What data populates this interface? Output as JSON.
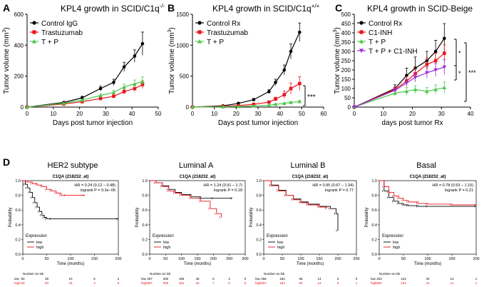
{
  "panels_top": [
    {
      "letter": "A",
      "title": "KPL4 growth in SCID/C1q",
      "title_sup": "-/-",
      "xlabel": "Days post tumor injection",
      "ylabel": "Tumor volume (mm",
      "ylabel_sup": "3",
      "ylabel_end": ")",
      "xlim": [
        0,
        50
      ],
      "ylim": [
        0,
        600
      ],
      "xticks": [
        0,
        10,
        20,
        30,
        40,
        50
      ],
      "yticks": [
        0,
        200,
        400,
        600
      ],
      "legend_placement": "top-left",
      "chart_data": {
        "type": "line",
        "series": [
          {
            "name": "Control IgG",
            "color": "#000000",
            "marker": "circle",
            "x": [
              0,
              14,
              21,
              28,
              33,
              37,
              41,
              44
            ],
            "y": [
              0,
              30,
              60,
              120,
              160,
              260,
              330,
              410
            ],
            "err": [
              0,
              5,
              10,
              15,
              20,
              30,
              40,
              75
            ]
          },
          {
            "name": "Trastuzumab",
            "color": "#e8141c",
            "marker": "square",
            "x": [
              0,
              14,
              21,
              28,
              33,
              37,
              41,
              44
            ],
            "y": [
              0,
              20,
              35,
              55,
              70,
              100,
              120,
              145
            ],
            "err": [
              0,
              3,
              5,
              8,
              10,
              15,
              20,
              25
            ]
          },
          {
            "name": "T + P",
            "color": "#4ec94e",
            "marker": "triangle",
            "x": [
              0,
              14,
              21,
              28,
              33,
              37,
              41,
              44
            ],
            "y": [
              0,
              25,
              45,
              75,
              95,
              130,
              150,
              165
            ],
            "err": [
              0,
              3,
              6,
              10,
              12,
              18,
              25,
              30
            ]
          }
        ]
      }
    },
    {
      "letter": "B",
      "title": "KPL4 growth in SCID/C1q",
      "title_sup": "+/+",
      "xlabel": "Days post tumor injection",
      "ylabel": "Tumor volume (mm",
      "ylabel_sup": "3",
      "ylabel_end": ")",
      "xlim": [
        0,
        60
      ],
      "ylim": [
        0,
        1500
      ],
      "xticks": [
        0,
        10,
        20,
        30,
        40,
        50,
        60
      ],
      "yticks": [
        0,
        500,
        1000,
        1500
      ],
      "legend_placement": "top-left",
      "significance": "***",
      "chart_data": {
        "type": "line",
        "series": [
          {
            "name": "Control Rx",
            "color": "#000000",
            "marker": "circle",
            "x": [
              0,
              14,
              21,
              28,
              35,
              38,
              42,
              45,
              49
            ],
            "y": [
              0,
              20,
              60,
              120,
              250,
              400,
              600,
              900,
              1210
            ],
            "err": [
              0,
              5,
              10,
              20,
              30,
              50,
              80,
              120,
              150
            ]
          },
          {
            "name": "Trastuzumab",
            "color": "#e8141c",
            "marker": "square",
            "x": [
              0,
              14,
              21,
              28,
              35,
              38,
              42,
              45,
              49
            ],
            "y": [
              0,
              10,
              25,
              45,
              80,
              130,
              200,
              300,
              380
            ],
            "err": [
              0,
              3,
              5,
              10,
              15,
              30,
              60,
              90,
              110
            ]
          },
          {
            "name": "T + P",
            "color": "#4ec94e",
            "marker": "triangle",
            "x": [
              0,
              14,
              21,
              28,
              35,
              38,
              42,
              45,
              49
            ],
            "y": [
              0,
              5,
              10,
              18,
              30,
              45,
              60,
              75,
              90
            ],
            "err": [
              0,
              2,
              3,
              5,
              8,
              10,
              12,
              15,
              18
            ]
          }
        ]
      }
    },
    {
      "letter": "C",
      "title": "KPL4 growth in SCID-Beige",
      "title_sup": "",
      "xlabel": "days post tumor Rx",
      "ylabel": "Tumor volume (mm",
      "ylabel_sup": "3",
      "ylabel_end": ")",
      "xlim": [
        0,
        40
      ],
      "ylim": [
        0,
        500
      ],
      "xticks": [
        0,
        10,
        20,
        30,
        40
      ],
      "yticks": [
        0,
        50,
        100,
        150,
        200,
        250,
        300,
        350,
        400,
        450,
        500
      ],
      "legend_placement": "top-left",
      "significance": [
        "*",
        "*",
        "***"
      ],
      "chart_data": {
        "type": "line",
        "series": [
          {
            "name": "Control Rx",
            "color": "#000000",
            "marker": "circle",
            "x": [
              0,
              14,
              18,
              21,
              25,
              28,
              31
            ],
            "y": [
              0,
              100,
              170,
              210,
              250,
              300,
              370
            ],
            "err": [
              0,
              20,
              40,
              60,
              50,
              60,
              80
            ]
          },
          {
            "name": "C1-INH",
            "color": "#e8141c",
            "marker": "square",
            "x": [
              0,
              14,
              18,
              21,
              25,
              28,
              31
            ],
            "y": [
              0,
              95,
              140,
              180,
              230,
              250,
              290
            ],
            "err": [
              0,
              15,
              25,
              30,
              35,
              40,
              45
            ]
          },
          {
            "name": "T + P",
            "color": "#4ec94e",
            "marker": "triangle",
            "x": [
              0,
              14,
              18,
              21,
              25,
              28,
              31
            ],
            "y": [
              0,
              75,
              85,
              95,
              85,
              95,
              105
            ],
            "err": [
              0,
              15,
              20,
              20,
              20,
              25,
              30
            ]
          },
          {
            "name": "T + P + C1-INH",
            "color": "#9b30d9",
            "marker": "triangle-down",
            "x": [
              0,
              14,
              18,
              21,
              25,
              28,
              31
            ],
            "y": [
              0,
              90,
              130,
              160,
              185,
              200,
              215
            ],
            "err": [
              0,
              15,
              20,
              25,
              30,
              35,
              40
            ]
          }
        ]
      }
    }
  ],
  "panel_d": {
    "letter": "D",
    "subplots": [
      {
        "header": "HER2 subtype",
        "gene": "C1QA (218232_at)",
        "stats": [
          "HR = 0.24 (0.12 – 0.48)",
          "logrank P = 9.3e−06"
        ],
        "xlabel": "Time (months)",
        "ylabel": "Probability",
        "xticks": [
          0,
          50,
          100,
          150,
          200
        ],
        "xlim": [
          0,
          200
        ],
        "yticks": [
          0.0,
          0.2,
          0.4,
          0.6,
          0.8,
          1.0
        ],
        "legend": {
          "title": "Expression",
          "low": "low",
          "high": "high"
        },
        "risk": {
          "label": "Number at risk",
          "low": [
            "low",
            "83",
            "38",
            "10",
            "6",
            "2"
          ],
          "high": [
            "high",
            "83",
            "53",
            "18",
            "4",
            "0"
          ]
        },
        "chart_data": {
          "type": "line",
          "series": [
            {
              "name": "low",
              "color": "#000000",
              "x": [
                0,
                5,
                10,
                15,
                20,
                25,
                30,
                35,
                40,
                45,
                50,
                60,
                200
              ],
              "y": [
                1.0,
                0.95,
                0.9,
                0.84,
                0.77,
                0.7,
                0.64,
                0.58,
                0.53,
                0.5,
                0.48,
                0.48,
                0.48
              ]
            },
            {
              "name": "high",
              "color": "#e8141c",
              "x": [
                0,
                10,
                20,
                30,
                40,
                50,
                60,
                70,
                80,
                90,
                130
              ],
              "y": [
                1.0,
                0.98,
                0.96,
                0.94,
                0.92,
                0.88,
                0.86,
                0.83,
                0.8,
                0.8,
                0.8
              ]
            }
          ]
        }
      },
      {
        "header": "Luminal A",
        "gene": "C1QA (218232_at)",
        "stats": [
          "HR = 1.24 (0.91 – 1.7)",
          "logrank P = 0.18"
        ],
        "xlabel": "Time (months)",
        "ylabel": "Probability",
        "xticks": [
          0,
          50,
          100,
          150,
          200,
          250,
          300
        ],
        "xlim": [
          0,
          300
        ],
        "yticks": [
          0.0,
          0.2,
          0.4,
          0.6,
          0.8,
          1.0
        ],
        "legend": {
          "title": "Expression",
          "low": "low",
          "high": "high"
        },
        "risk": {
          "label": "Number at risk",
          "low": [
            "low",
            "397",
            "330",
            "165",
            "45",
            "6",
            "2",
            "0"
          ],
          "high": [
            "high",
            "397",
            "305",
            "151",
            "44",
            "7",
            "0",
            "0"
          ]
        },
        "chart_data": {
          "type": "line",
          "series": [
            {
              "name": "low",
              "color": "#000000",
              "x": [
                0,
                20,
                40,
                60,
                80,
                100,
                130,
                160,
                200,
                260
              ],
              "y": [
                1.0,
                0.97,
                0.93,
                0.88,
                0.84,
                0.81,
                0.78,
                0.76,
                0.76,
                0.76
              ]
            },
            {
              "name": "high",
              "color": "#e8141c",
              "x": [
                0,
                20,
                40,
                60,
                80,
                100,
                130,
                160,
                190,
                210,
                225
              ],
              "y": [
                1.0,
                0.97,
                0.92,
                0.86,
                0.83,
                0.8,
                0.76,
                0.72,
                0.62,
                0.55,
                0.5
              ]
            }
          ]
        }
      },
      {
        "header": "Luminal B",
        "gene": "C1QA (218232_at)",
        "stats": [
          "HR = 0.95 (0.67 – 1.34)",
          "logrank P = 0.77"
        ],
        "xlabel": "Time (months)",
        "ylabel": "Probability",
        "xticks": [
          0,
          50,
          100,
          150,
          200,
          250
        ],
        "xlim": [
          0,
          250
        ],
        "yticks": [
          0.0,
          0.2,
          0.4,
          0.6,
          0.8,
          1.0
        ],
        "legend": {
          "title": "Expression",
          "low": "low",
          "high": "high"
        },
        "risk": {
          "label": "Number at risk",
          "low": [
            "low",
            "256",
            "184",
            "65",
            "14",
            "3",
            "0"
          ],
          "high": [
            "high",
            "257",
            "184",
            "60",
            "14",
            "3",
            "1"
          ]
        },
        "chart_data": {
          "type": "line",
          "series": [
            {
              "name": "low",
              "color": "#000000",
              "x": [
                0,
                20,
                40,
                60,
                80,
                100,
                120,
                150,
                180,
                195,
                200
              ],
              "y": [
                1.0,
                0.94,
                0.87,
                0.8,
                0.75,
                0.71,
                0.68,
                0.65,
                0.62,
                0.55,
                0.32
              ]
            },
            {
              "name": "high",
              "color": "#e8141c",
              "x": [
                0,
                20,
                40,
                60,
                80,
                100,
                120,
                150,
                170
              ],
              "y": [
                1.0,
                0.93,
                0.86,
                0.8,
                0.74,
                0.7,
                0.67,
                0.64,
                0.62
              ]
            }
          ]
        }
      },
      {
        "header": "Basal",
        "gene": "C1QA (218232_at)",
        "stats": [
          "HR = 0.78 (0.53 – 1.15)",
          "logrank P = 0.21"
        ],
        "xlabel": "Time (months)",
        "ylabel": "Probability",
        "xticks": [
          0,
          50,
          100,
          150,
          200
        ],
        "xlim": [
          0,
          200
        ],
        "yticks": [
          0.0,
          0.2,
          0.4,
          0.6,
          0.8,
          1.0
        ],
        "legend": {
          "title": "Expression",
          "low": "low",
          "high": "high"
        },
        "risk": {
          "label": "Number at risk",
          "low": [
            "low",
            "202",
            "124",
            "40",
            "12",
            "1"
          ],
          "high": [
            "high",
            "202",
            "122",
            "41",
            "11",
            "1"
          ]
        },
        "chart_data": {
          "type": "line",
          "series": [
            {
              "name": "low",
              "color": "#000000",
              "x": [
                0,
                10,
                20,
                30,
                40,
                50,
                60,
                80,
                100,
                200
              ],
              "y": [
                1.0,
                0.86,
                0.77,
                0.72,
                0.69,
                0.67,
                0.66,
                0.65,
                0.65,
                0.65
              ]
            },
            {
              "name": "high",
              "color": "#e8141c",
              "x": [
                0,
                10,
                20,
                30,
                40,
                50,
                60,
                80,
                100,
                150,
                200
              ],
              "y": [
                1.0,
                0.92,
                0.84,
                0.79,
                0.76,
                0.73,
                0.71,
                0.69,
                0.68,
                0.67,
                0.67
              ]
            }
          ]
        }
      }
    ]
  }
}
